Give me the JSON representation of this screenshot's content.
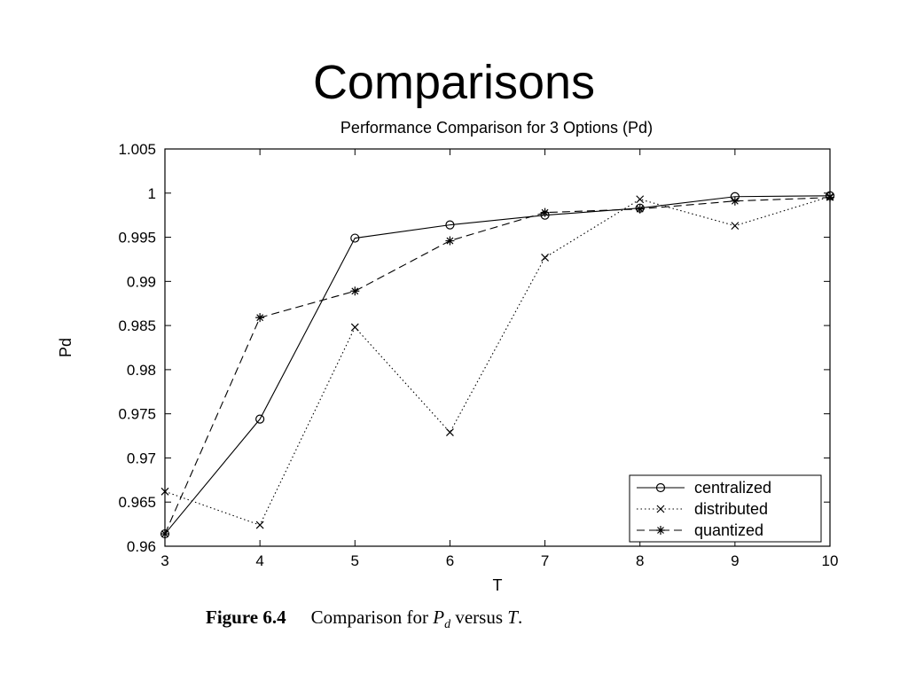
{
  "slide": {
    "title": "Comparisons"
  },
  "caption": {
    "label": "Figure 6.4",
    "text_before": "Comparison for",
    "var_main": "P",
    "var_sub": "d",
    "text_middle": "versus",
    "var_t": "T",
    "text_end": "."
  },
  "chart_data": {
    "type": "line",
    "title": "Performance Comparison for 3 Options (Pd)",
    "xlabel": "T",
    "ylabel": "Pd",
    "x": [
      3,
      4,
      5,
      6,
      7,
      8,
      9,
      10
    ],
    "xlim": [
      3,
      10
    ],
    "ylim": [
      0.96,
      1.005
    ],
    "xticks": [
      "3",
      "4",
      "5",
      "6",
      "7",
      "8",
      "9",
      "10"
    ],
    "yticks": [
      "0.96",
      "0.965",
      "0.97",
      "0.975",
      "0.98",
      "0.985",
      "0.99",
      "0.995",
      "1",
      "1.005"
    ],
    "grid": false,
    "legend_position": "bottom-right",
    "series": [
      {
        "name": "centralized",
        "line_style": "solid",
        "marker": "circle",
        "values": [
          0.9614,
          0.9744,
          0.9949,
          0.9964,
          0.9975,
          0.9983,
          0.9996,
          0.9997
        ]
      },
      {
        "name": "distributed",
        "line_style": "dotted",
        "marker": "x",
        "values": [
          0.9662,
          0.9624,
          0.9848,
          0.9729,
          0.9927,
          0.9993,
          0.9963,
          0.9996
        ]
      },
      {
        "name": "quantized",
        "line_style": "dashed",
        "marker": "star",
        "values": [
          0.9614,
          0.9859,
          0.9889,
          0.9946,
          0.9978,
          0.9982,
          0.9991,
          0.9995
        ]
      }
    ]
  }
}
